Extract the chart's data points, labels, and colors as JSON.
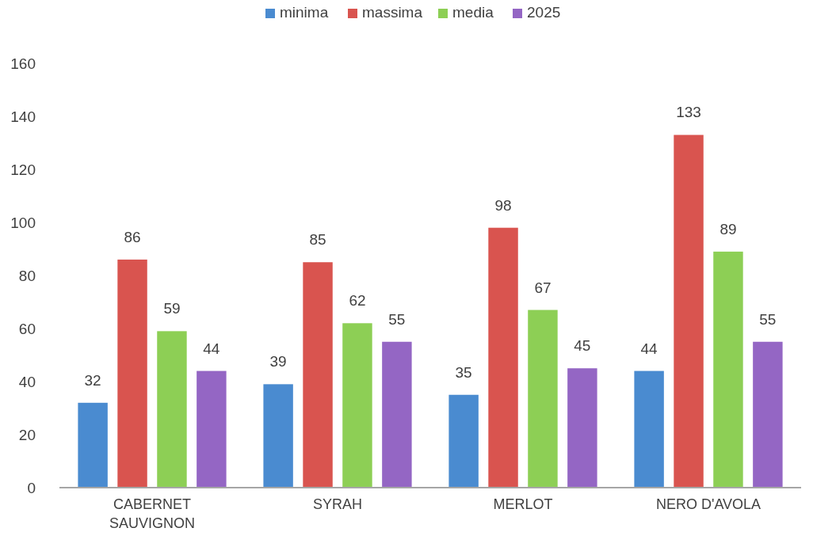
{
  "chart_data": {
    "type": "bar",
    "categories": [
      "CABERNET SAUVIGNON",
      "SYRAH",
      "MERLOT",
      "NERO D'AVOLA"
    ],
    "series": [
      {
        "name": "minima",
        "color": "#4a8bd0",
        "values": [
          32,
          39,
          35,
          44
        ]
      },
      {
        "name": "massima",
        "color": "#d9544f",
        "values": [
          86,
          85,
          98,
          133
        ]
      },
      {
        "name": "media",
        "color": "#8dcf55",
        "values": [
          59,
          62,
          67,
          89
        ]
      },
      {
        "name": "2025",
        "color": "#9466c4",
        "values": [
          44,
          55,
          45,
          55
        ]
      }
    ],
    "ylim": [
      0,
      160
    ],
    "yticks": [
      0,
      20,
      40,
      60,
      80,
      100,
      120,
      140,
      160
    ],
    "grid": false,
    "legend": "top",
    "data_labels": true
  }
}
